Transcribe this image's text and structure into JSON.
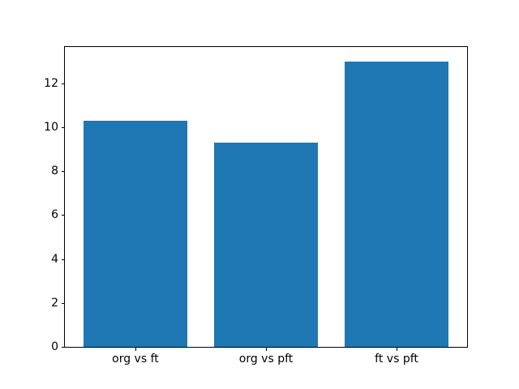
{
  "chart_data": {
    "type": "bar",
    "categories": [
      "org vs ft",
      "org vs pft",
      "ft vs pft"
    ],
    "values": [
      10.3,
      9.3,
      13.0
    ],
    "title": "",
    "xlabel": "",
    "ylabel": "",
    "yticks": [
      0,
      2,
      4,
      6,
      8,
      10,
      12
    ],
    "ylim": [
      0,
      13.65
    ],
    "xlim": [
      -0.54,
      2.54
    ],
    "bar_width_fraction": 0.8,
    "grid": false,
    "legend": null,
    "bar_color": "#1f77b4",
    "spine_color": "#000000",
    "text_color": "#000000",
    "background_color": "#ffffff"
  }
}
